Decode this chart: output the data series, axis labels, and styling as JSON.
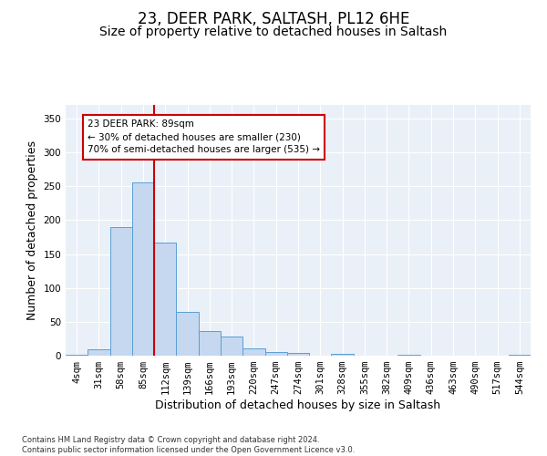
{
  "title_line1": "23, DEER PARK, SALTASH, PL12 6HE",
  "title_line2": "Size of property relative to detached houses in Saltash",
  "xlabel": "Distribution of detached houses by size in Saltash",
  "ylabel": "Number of detached properties",
  "footnote": "Contains HM Land Registry data © Crown copyright and database right 2024.\nContains public sector information licensed under the Open Government Licence v3.0.",
  "categories": [
    "4sqm",
    "31sqm",
    "58sqm",
    "85sqm",
    "112sqm",
    "139sqm",
    "166sqm",
    "193sqm",
    "220sqm",
    "247sqm",
    "274sqm",
    "301sqm",
    "328sqm",
    "355sqm",
    "382sqm",
    "409sqm",
    "436sqm",
    "463sqm",
    "490sqm",
    "517sqm",
    "544sqm"
  ],
  "bar_values": [
    2,
    10,
    190,
    255,
    167,
    65,
    37,
    28,
    11,
    6,
    4,
    0,
    3,
    0,
    0,
    1,
    0,
    0,
    0,
    0,
    1
  ],
  "bar_color": "#c5d8f0",
  "bar_edge_color": "#5a9fd4",
  "vline_x": 3.5,
  "vline_color": "#cc0000",
  "annotation_text": "23 DEER PARK: 89sqm\n← 30% of detached houses are smaller (230)\n70% of semi-detached houses are larger (535) →",
  "annotation_box_color": "#ffffff",
  "annotation_border_color": "#cc0000",
  "ylim": [
    0,
    370
  ],
  "yticks": [
    0,
    50,
    100,
    150,
    200,
    250,
    300,
    350
  ],
  "plot_bg_color": "#eaf0f8",
  "title_fontsize": 12,
  "subtitle_fontsize": 10,
  "label_fontsize": 9,
  "tick_fontsize": 7.5
}
